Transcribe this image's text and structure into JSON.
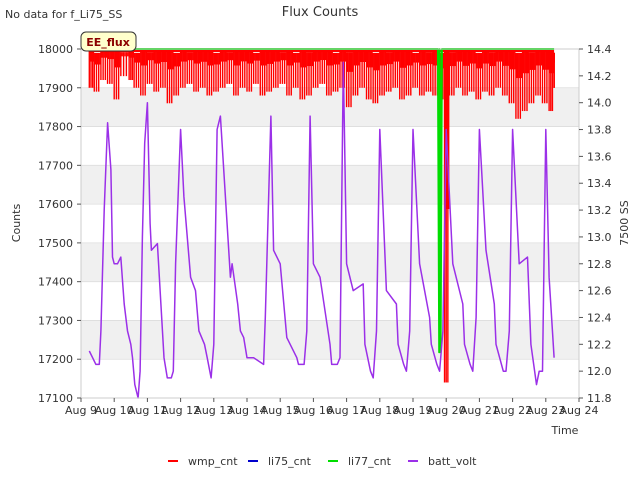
{
  "header": {
    "no_data_note": "No data for f_Li75_SS"
  },
  "chart_data": {
    "type": "line",
    "title": "Flux Counts",
    "xlabel": "Time",
    "ylabel": "Counts",
    "y2label": "7500 SS",
    "site_badge": "EE_flux",
    "xlim": [
      9,
      24
    ],
    "ylim": [
      17100,
      18000
    ],
    "y2lim": [
      11.8,
      14.4
    ],
    "grid": "horizontal-bands",
    "legend_position": "bottom-center",
    "x_ticks": [
      {
        "v": 9,
        "label": "Aug 9"
      },
      {
        "v": 10,
        "label": "Aug 10"
      },
      {
        "v": 11,
        "label": "Aug 11"
      },
      {
        "v": 12,
        "label": "Aug 12"
      },
      {
        "v": 13,
        "label": "Aug 13"
      },
      {
        "v": 14,
        "label": "Aug 14"
      },
      {
        "v": 15,
        "label": "Aug 15"
      },
      {
        "v": 16,
        "label": "Aug 16"
      },
      {
        "v": 17,
        "label": "Aug 17"
      },
      {
        "v": 18,
        "label": "Aug 18"
      },
      {
        "v": 19,
        "label": "Aug 19"
      },
      {
        "v": 20,
        "label": "Aug 20"
      },
      {
        "v": 21,
        "label": "Aug 21"
      },
      {
        "v": 22,
        "label": "Aug 22"
      },
      {
        "v": 23,
        "label": "Aug 23"
      },
      {
        "v": 24,
        "label": "Aug 24"
      }
    ],
    "y_ticks": [
      {
        "v": 17100,
        "label": "17100"
      },
      {
        "v": 17200,
        "label": "17200"
      },
      {
        "v": 17300,
        "label": "17300"
      },
      {
        "v": 17400,
        "label": "17400"
      },
      {
        "v": 17500,
        "label": "17500"
      },
      {
        "v": 17600,
        "label": "17600"
      },
      {
        "v": 17700,
        "label": "17700"
      },
      {
        "v": 17800,
        "label": "17800"
      },
      {
        "v": 17900,
        "label": "17900"
      },
      {
        "v": 18000,
        "label": "18000"
      }
    ],
    "y2_ticks": [
      {
        "v": 11.8,
        "label": "11.8"
      },
      {
        "v": 12.0,
        "label": "12.0"
      },
      {
        "v": 12.2,
        "label": "12.2"
      },
      {
        "v": 12.4,
        "label": "12.4"
      },
      {
        "v": 12.6,
        "label": "12.6"
      },
      {
        "v": 12.8,
        "label": "12.8"
      },
      {
        "v": 13.0,
        "label": "13.0"
      },
      {
        "v": 13.2,
        "label": "13.2"
      },
      {
        "v": 13.4,
        "label": "13.4"
      },
      {
        "v": 13.6,
        "label": "13.6"
      },
      {
        "v": 13.8,
        "label": "13.8"
      },
      {
        "v": 14.0,
        "label": "14.0"
      },
      {
        "v": 14.2,
        "label": "14.2"
      },
      {
        "v": 14.4,
        "label": "14.4"
      }
    ],
    "series": [
      {
        "name": "wmp_cnt",
        "color": "#ff0000",
        "axis": "left",
        "x": [
          9.25,
          9.4,
          9.6,
          9.8,
          10.0,
          10.2,
          10.45,
          10.6,
          10.8,
          11.0,
          11.2,
          11.4,
          11.6,
          11.8,
          12.0,
          12.2,
          12.4,
          12.6,
          12.8,
          13.0,
          13.2,
          13.4,
          13.6,
          13.8,
          14.0,
          14.2,
          14.4,
          14.6,
          14.8,
          15.0,
          15.2,
          15.4,
          15.6,
          15.8,
          16.0,
          16.2,
          16.4,
          16.6,
          16.8,
          17.0,
          17.2,
          17.4,
          17.6,
          17.8,
          18.0,
          18.2,
          18.4,
          18.6,
          18.8,
          19.0,
          19.2,
          19.4,
          19.6,
          19.8,
          19.95,
          20.1,
          20.3,
          20.5,
          20.7,
          20.9,
          21.1,
          21.3,
          21.5,
          21.7,
          21.9,
          22.1,
          22.3,
          22.5,
          22.7,
          22.9,
          23.1,
          23.25
        ],
        "max": [
          17995,
          17990,
          17995,
          17998,
          17995,
          17992,
          17995,
          17990,
          17995,
          17992,
          17995,
          17993,
          17995,
          17990,
          17995,
          17992,
          17995,
          17994,
          17995,
          17990,
          17995,
          17992,
          17995,
          17996,
          17995,
          17990,
          17995,
          17993,
          17995,
          17992,
          17995,
          17990,
          17995,
          17992,
          17995,
          17993,
          17995,
          17990,
          17995,
          17992,
          17995,
          17993,
          17995,
          17990,
          17995,
          17992,
          17995,
          17993,
          17995,
          17990,
          17995,
          17992,
          17995,
          17990,
          17995,
          17992,
          17995,
          17993,
          17995,
          17990,
          17995,
          17992,
          17995,
          17993,
          17995,
          17990,
          17995,
          17992,
          17995,
          17993,
          17995,
          17990
        ],
        "min": [
          17900,
          17890,
          17920,
          17910,
          17870,
          17930,
          17920,
          17900,
          17880,
          17910,
          17890,
          17900,
          17860,
          17880,
          17900,
          17910,
          17890,
          17900,
          17880,
          17890,
          17900,
          17910,
          17880,
          17900,
          17890,
          17910,
          17880,
          17890,
          17900,
          17910,
          17880,
          17900,
          17870,
          17880,
          17900,
          17910,
          17880,
          17890,
          17900,
          17850,
          17880,
          17900,
          17870,
          17860,
          17880,
          17890,
          17900,
          17870,
          17880,
          17900,
          17880,
          17890,
          17880,
          17870,
          17140,
          17880,
          17900,
          17880,
          17890,
          17870,
          17890,
          17880,
          17900,
          17880,
          17860,
          17820,
          17840,
          17860,
          17880,
          17860,
          17840,
          17900
        ]
      },
      {
        "name": "li75_cnt",
        "color": "#0000cc",
        "axis": "left",
        "x": [],
        "values": []
      },
      {
        "name": "li77_cnt",
        "color": "#00dd00",
        "axis": "left",
        "x": [
          9.25,
          19.75,
          19.79,
          19.8,
          19.83,
          19.87,
          19.9,
          23.25
        ],
        "values": [
          18000,
          18000,
          17218,
          18000,
          17218,
          18000,
          18000,
          18000
        ]
      },
      {
        "name": "batt_volt",
        "color": "#9b30e8",
        "axis": "right",
        "x": [
          9.25,
          9.35,
          9.45,
          9.55,
          9.6,
          9.7,
          9.8,
          9.9,
          9.95,
          10.0,
          10.1,
          10.2,
          10.3,
          10.4,
          10.5,
          10.55,
          10.62,
          10.72,
          10.78,
          10.85,
          10.92,
          11.0,
          11.08,
          11.12,
          11.3,
          11.5,
          11.6,
          11.72,
          11.78,
          11.85,
          12.0,
          12.1,
          12.3,
          12.45,
          12.55,
          12.72,
          12.8,
          12.92,
          13.0,
          13.1,
          13.2,
          13.5,
          13.55,
          13.72,
          13.8,
          13.9,
          14.0,
          14.2,
          14.5,
          14.55,
          14.72,
          14.8,
          15.0,
          15.2,
          15.5,
          15.55,
          15.72,
          15.8,
          15.9,
          16.0,
          16.2,
          16.5,
          16.55,
          16.72,
          16.8,
          16.9,
          17.0,
          17.2,
          17.5,
          17.55,
          17.72,
          17.8,
          17.9,
          18.0,
          18.2,
          18.5,
          18.55,
          18.72,
          18.8,
          18.9,
          19.0,
          19.2,
          19.5,
          19.55,
          19.72,
          19.8,
          19.9,
          20.0,
          20.2,
          20.5,
          20.55,
          20.72,
          20.8,
          20.9,
          21.0,
          21.2,
          21.45,
          21.5,
          21.72,
          21.8,
          21.9,
          22.0,
          22.2,
          22.45,
          22.55,
          22.72,
          22.8,
          22.9,
          23.0,
          23.1,
          23.25
        ],
        "values": [
          12.15,
          12.1,
          12.05,
          12.05,
          12.3,
          13.2,
          13.85,
          13.5,
          12.85,
          12.8,
          12.8,
          12.85,
          12.5,
          12.3,
          12.2,
          12.1,
          11.9,
          11.8,
          12.0,
          13.0,
          13.7,
          14.0,
          13.1,
          12.9,
          12.95,
          12.1,
          11.95,
          11.95,
          12.0,
          12.8,
          13.8,
          13.3,
          12.7,
          12.6,
          12.3,
          12.2,
          12.1,
          11.95,
          12.2,
          13.8,
          13.9,
          12.7,
          12.8,
          12.5,
          12.3,
          12.25,
          12.1,
          12.1,
          12.05,
          12.4,
          13.9,
          12.9,
          12.8,
          12.25,
          12.1,
          12.05,
          12.05,
          12.3,
          13.9,
          12.8,
          12.7,
          12.2,
          12.05,
          12.05,
          12.1,
          14.3,
          12.8,
          12.6,
          12.65,
          12.2,
          12.0,
          11.95,
          12.3,
          13.8,
          12.6,
          12.5,
          12.2,
          12.05,
          12.0,
          12.3,
          13.8,
          12.8,
          12.4,
          12.2,
          12.05,
          12.0,
          12.3,
          13.8,
          12.8,
          12.5,
          12.2,
          12.05,
          12.0,
          12.4,
          13.8,
          12.9,
          12.5,
          12.2,
          12.0,
          12.0,
          12.3,
          13.8,
          12.8,
          12.85,
          12.2,
          11.9,
          12.0,
          12.0,
          13.8,
          12.7,
          12.1
        ]
      }
    ]
  }
}
